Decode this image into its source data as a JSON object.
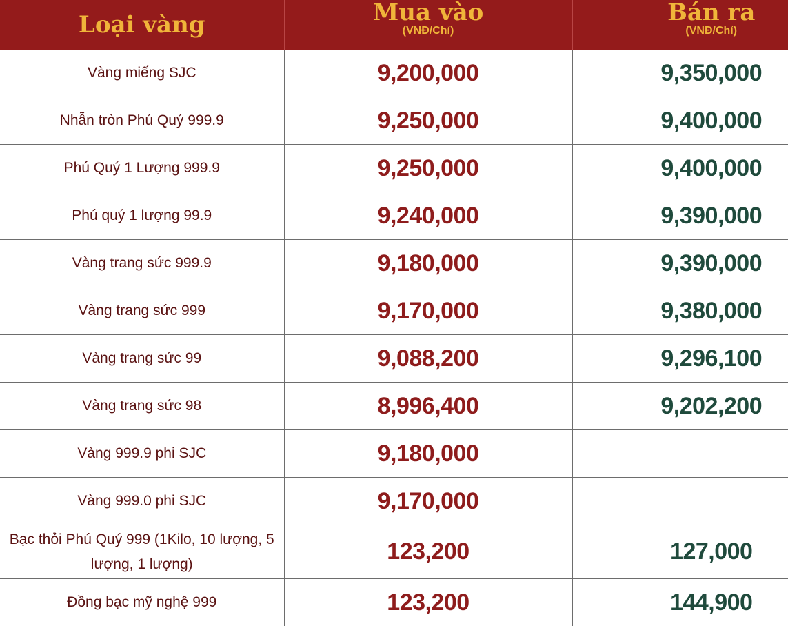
{
  "header": {
    "col_name": "Loại vàng",
    "col_buy": "Mua vào",
    "col_buy_unit": "(VNĐ/Chỉ)",
    "col_sell": "Bán ra",
    "col_sell_unit": "(VNĐ/Chỉ)"
  },
  "rows": [
    {
      "name": "Vàng miếng SJC",
      "buy": "9,200,000",
      "sell": "9,350,000"
    },
    {
      "name": "Nhẫn tròn Phú Quý 999.9",
      "buy": "9,250,000",
      "sell": "9,400,000"
    },
    {
      "name": "Phú Quý 1 Lượng 999.9",
      "buy": "9,250,000",
      "sell": "9,400,000"
    },
    {
      "name": "Phú quý 1 lượng 99.9",
      "buy": "9,240,000",
      "sell": "9,390,000"
    },
    {
      "name": "Vàng trang sức 999.9",
      "buy": "9,180,000",
      "sell": "9,390,000"
    },
    {
      "name": "Vàng trang sức 999",
      "buy": "9,170,000",
      "sell": "9,380,000"
    },
    {
      "name": "Vàng trang sức 99",
      "buy": "9,088,200",
      "sell": "9,296,100"
    },
    {
      "name": "Vàng trang sức 98",
      "buy": "8,996,400",
      "sell": "9,202,200"
    },
    {
      "name": "Vàng 999.9 phi SJC",
      "buy": "9,180,000",
      "sell": ""
    },
    {
      "name": "Vàng 999.0 phi SJC",
      "buy": "9,170,000",
      "sell": ""
    },
    {
      "name": "Bạc thỏi Phú Quý 999 (1Kilo, 10 lượng, 5 lượng, 1 lượng)",
      "buy": "123,200",
      "sell": "127,000"
    },
    {
      "name": "Đồng bạc mỹ nghệ 999",
      "buy": "123,200",
      "sell": "144,900"
    }
  ],
  "colors": {
    "header_bg": "#941b1b",
    "header_text": "#f0b53a",
    "buy_text": "#8e1c1c",
    "sell_text": "#1f4a3c",
    "name_text": "#5a1212"
  }
}
